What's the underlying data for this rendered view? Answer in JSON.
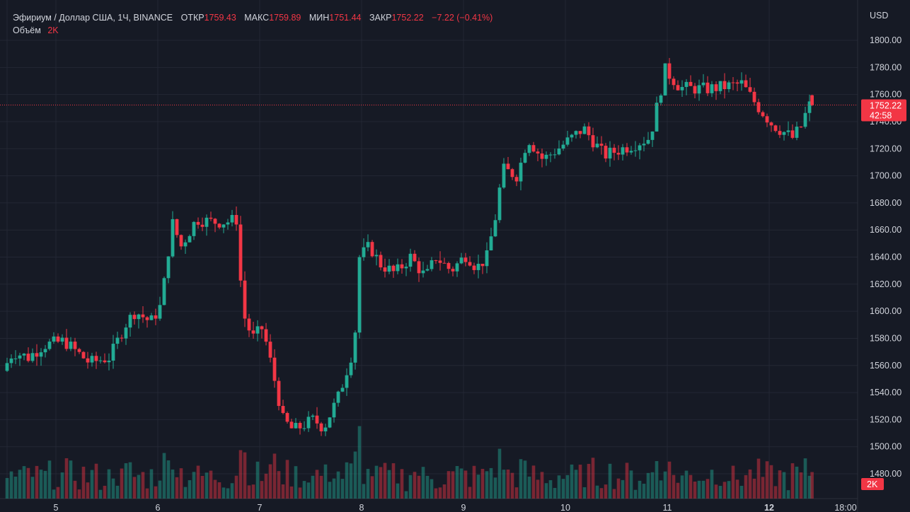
{
  "header": {
    "symbol": "Эфириум / Доллар США, 1Ч, BINANCE",
    "open_label": "ОТКР",
    "open": "1759.43",
    "high_label": "МАКС",
    "high": "1759.89",
    "low_label": "МИН",
    "low": "1751.44",
    "close_label": "ЗАКР",
    "close": "1752.22",
    "change": "−7.22 (−0.41%)",
    "volume_label": "Объём",
    "volume": "2K"
  },
  "axis": {
    "currency": "USD",
    "price_ticks": [
      "1800.00",
      "1780.00",
      "1760.00",
      "1740.00",
      "1720.00",
      "1700.00",
      "1680.00",
      "1660.00",
      "1640.00",
      "1620.00",
      "1600.00",
      "1580.00",
      "1560.00",
      "1540.00",
      "1520.00",
      "1500.00",
      "1480.00"
    ],
    "time_ticks": [
      "5",
      "6",
      "7",
      "8",
      "9",
      "10",
      "11",
      "12",
      "18:00"
    ]
  },
  "price_label": {
    "value": "1752.22",
    "countdown": "42:58"
  },
  "volume_label": "2K",
  "colors": {
    "up": "#22ab94",
    "down": "#f23645",
    "background": "#161a25",
    "grid": "#232734"
  },
  "chart_data": {
    "type": "candlestick",
    "interval": "1h",
    "y_range": [
      1470,
      1810
    ],
    "current_price": 1752.22,
    "x_start_day": 4.5,
    "x_end_day": 12.8,
    "daily_price_path": [
      [
        4.5,
        1556
      ],
      [
        4.6,
        1570
      ],
      [
        4.75,
        1566
      ],
      [
        4.9,
        1575
      ],
      [
        5.1,
        1578
      ],
      [
        5.35,
        1562
      ],
      [
        5.55,
        1566
      ],
      [
        5.7,
        1590
      ],
      [
        5.8,
        1600
      ],
      [
        5.95,
        1592
      ],
      [
        6.05,
        1604
      ],
      [
        6.12,
        1640
      ],
      [
        6.15,
        1668
      ],
      [
        6.25,
        1648
      ],
      [
        6.4,
        1668
      ],
      [
        6.55,
        1666
      ],
      [
        6.7,
        1666
      ],
      [
        6.8,
        1668
      ],
      [
        6.85,
        1600
      ],
      [
        6.95,
        1580
      ],
      [
        7.05,
        1588
      ],
      [
        7.15,
        1555
      ],
      [
        7.25,
        1520
      ],
      [
        7.35,
        1512
      ],
      [
        7.55,
        1520
      ],
      [
        7.65,
        1514
      ],
      [
        7.8,
        1538
      ],
      [
        7.95,
        1575
      ],
      [
        8.0,
        1640
      ],
      [
        8.1,
        1648
      ],
      [
        8.2,
        1635
      ],
      [
        8.35,
        1628
      ],
      [
        8.5,
        1640
      ],
      [
        8.65,
        1625
      ],
      [
        8.75,
        1640
      ],
      [
        8.9,
        1630
      ],
      [
        9.05,
        1642
      ],
      [
        9.15,
        1632
      ],
      [
        9.25,
        1640
      ],
      [
        9.35,
        1675
      ],
      [
        9.4,
        1705
      ],
      [
        9.55,
        1700
      ],
      [
        9.65,
        1728
      ],
      [
        9.8,
        1712
      ],
      [
        9.95,
        1720
      ],
      [
        10.2,
        1735
      ],
      [
        10.4,
        1715
      ],
      [
        10.65,
        1722
      ],
      [
        10.85,
        1728
      ],
      [
        11.0,
        1778
      ],
      [
        11.15,
        1765
      ],
      [
        11.4,
        1764
      ],
      [
        11.6,
        1766
      ],
      [
        11.75,
        1768
      ],
      [
        11.9,
        1752
      ],
      [
        12.05,
        1738
      ],
      [
        12.25,
        1728
      ],
      [
        12.35,
        1738
      ],
      [
        12.4,
        1752
      ]
    ],
    "last_candle": {
      "open": 1759.43,
      "high": 1759.89,
      "low": 1751.44,
      "close": 1752.22
    }
  }
}
